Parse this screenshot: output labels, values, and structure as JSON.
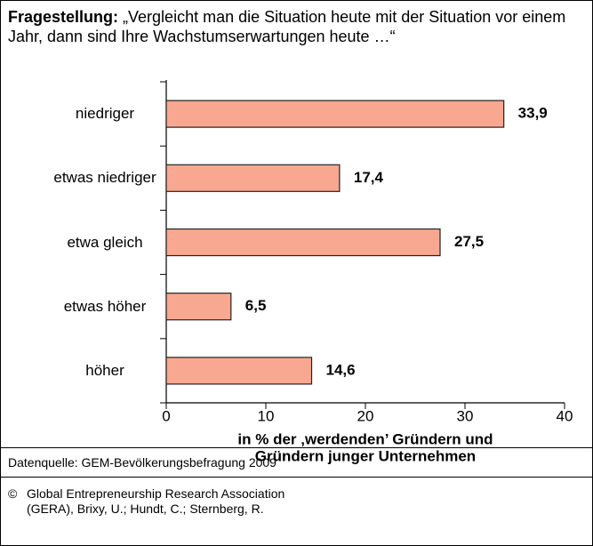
{
  "chart_data": {
    "type": "hbar",
    "title_label": "Fragestellung:",
    "title": "„Vergleicht man die Situation heute mit der Situation vor einem Jahr, dann sind Ihre Wachstumserwartungen heute …“",
    "categories": [
      "niedriger",
      "etwas niedriger",
      "etwa gleich",
      "etwas höher",
      "höher"
    ],
    "values": [
      33.9,
      17.4,
      27.5,
      6.5,
      14.6
    ],
    "value_labels": [
      "33,9",
      "17,4",
      "27,5",
      "6,5",
      "14,6"
    ],
    "color": "#f8a890",
    "xlim": [
      0,
      40
    ],
    "xticks": [
      0,
      10,
      20,
      30,
      40
    ],
    "xlabel": [
      "in % der ‚werdenden’ Gründern und",
      "Gründern junger Unternehmen"
    ],
    "source": "Datenquelle: GEM-Bevölkerungsbefragung 2009",
    "copyright_symbol": "©",
    "copyright": "Global Entrepreneurship Research Association (GERA), Brixy, U.; Hundt, C.; Sternberg, R."
  }
}
